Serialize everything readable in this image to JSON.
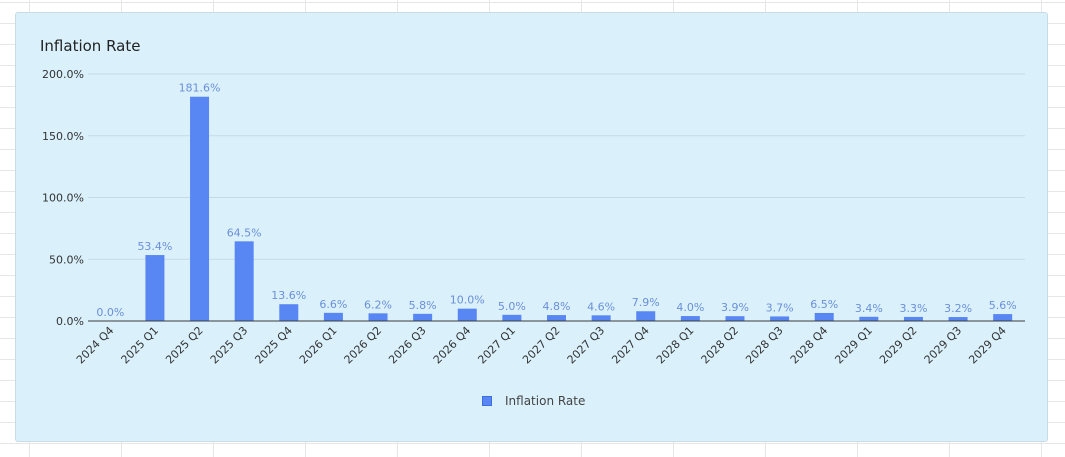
{
  "chart_data": {
    "type": "bar",
    "title": "Inflation Rate",
    "xlabel": "",
    "ylabel": "",
    "categories": [
      "2024 Q4",
      "2025 Q1",
      "2025 Q2",
      "2025 Q3",
      "2025 Q4",
      "2026 Q1",
      "2026 Q2",
      "2026 Q3",
      "2026 Q4",
      "2027 Q1",
      "2027 Q2",
      "2027 Q3",
      "2027 Q4",
      "2028 Q1",
      "2028 Q2",
      "2028 Q3",
      "2028 Q4",
      "2029 Q1",
      "2029 Q2",
      "2029 Q3",
      "2029 Q4"
    ],
    "series": [
      {
        "name": "Inflation Rate",
        "values": [
          0.0,
          53.4,
          181.6,
          64.5,
          13.6,
          6.6,
          6.2,
          5.8,
          10.0,
          5.0,
          4.8,
          4.6,
          7.9,
          4.0,
          3.9,
          3.7,
          6.5,
          3.4,
          3.3,
          3.2,
          5.6
        ],
        "data_labels": [
          "0.0%",
          "53.4%",
          "181.6%",
          "64.5%",
          "13.6%",
          "6.6%",
          "6.2%",
          "5.8%",
          "10.0%",
          "5.0%",
          "4.8%",
          "4.6%",
          "7.9%",
          "4.0%",
          "3.9%",
          "3.7%",
          "6.5%",
          "3.4%",
          "3.3%",
          "3.2%",
          "5.6%"
        ]
      }
    ],
    "yticks": [
      0,
      50,
      100,
      150,
      200
    ],
    "ytick_labels": [
      "0.0%",
      "50.0%",
      "100.0%",
      "150.0%",
      "200.0%"
    ],
    "ylim": [
      0,
      200
    ],
    "grid": true,
    "legend_position": "bottom-center",
    "colors": {
      "bar": "#5886f3",
      "data_label": "#6b8fd8",
      "grid": "#c8d9e3",
      "axis": "#3a3a3a",
      "card_background": "#daf1fc"
    }
  }
}
